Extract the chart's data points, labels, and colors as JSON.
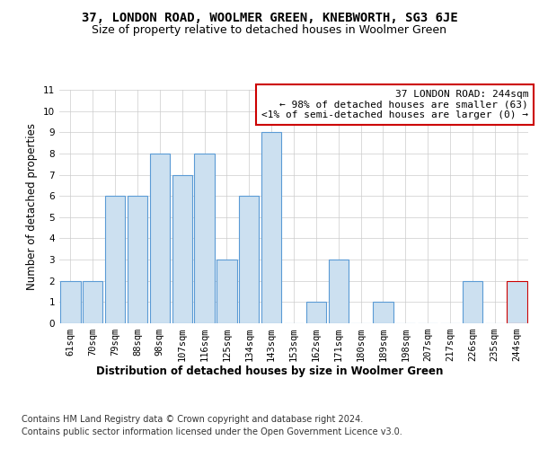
{
  "title": "37, LONDON ROAD, WOOLMER GREEN, KNEBWORTH, SG3 6JE",
  "subtitle": "Size of property relative to detached houses in Woolmer Green",
  "xlabel": "Distribution of detached houses by size in Woolmer Green",
  "ylabel": "Number of detached properties",
  "categories": [
    "61sqm",
    "70sqm",
    "79sqm",
    "88sqm",
    "98sqm",
    "107sqm",
    "116sqm",
    "125sqm",
    "134sqm",
    "143sqm",
    "153sqm",
    "162sqm",
    "171sqm",
    "180sqm",
    "189sqm",
    "198sqm",
    "207sqm",
    "217sqm",
    "226sqm",
    "235sqm",
    "244sqm"
  ],
  "values": [
    2,
    2,
    6,
    6,
    8,
    7,
    8,
    3,
    6,
    9,
    0,
    1,
    3,
    0,
    1,
    0,
    0,
    0,
    2,
    0,
    2
  ],
  "bar_color": "#cce0f0",
  "bar_edge_color": "#5b9bd5",
  "highlight_index": 20,
  "highlight_bar_edge_color": "#cc0000",
  "annotation_box_text": "37 LONDON ROAD: 244sqm\n← 98% of detached houses are smaller (63)\n<1% of semi-detached houses are larger (0) →",
  "annotation_box_color": "white",
  "annotation_box_edge_color": "#cc0000",
  "ylim": [
    0,
    11
  ],
  "yticks": [
    0,
    1,
    2,
    3,
    4,
    5,
    6,
    7,
    8,
    9,
    10,
    11
  ],
  "footer_line1": "Contains HM Land Registry data © Crown copyright and database right 2024.",
  "footer_line2": "Contains public sector information licensed under the Open Government Licence v3.0.",
  "background_color": "#ffffff",
  "grid_color": "#cccccc",
  "title_fontsize": 10,
  "subtitle_fontsize": 9,
  "axis_label_fontsize": 8.5,
  "tick_fontsize": 7.5,
  "footer_fontsize": 7,
  "annotation_fontsize": 8
}
